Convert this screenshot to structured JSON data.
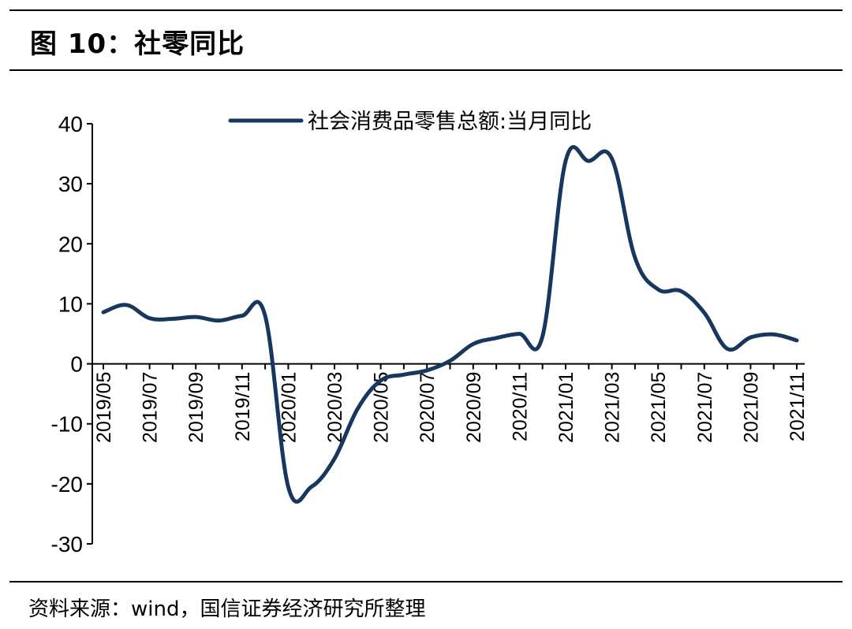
{
  "figure": {
    "title": "图 10：社零同比",
    "source": "资料来源：wind，国信证券经济研究所整理"
  },
  "chart_data": {
    "type": "line",
    "legend": "top-center",
    "grid": false,
    "ylim": [
      -30,
      40
    ],
    "yticks": [
      "40",
      "30",
      "20",
      "10",
      "0",
      "-10",
      "-20",
      "-30"
    ],
    "xticks": [
      "2019/05",
      "2019/07",
      "2019/09",
      "2019/11",
      "2020/01",
      "2020/03",
      "2020/05",
      "2020/07",
      "2020/09",
      "2020/11",
      "2021/01",
      "2021/03",
      "2021/05",
      "2021/07",
      "2021/09",
      "2021/11"
    ],
    "x": [
      "2019/05",
      "2019/06",
      "2019/07",
      "2019/08",
      "2019/09",
      "2019/10",
      "2019/11",
      "2019/12",
      "2020/01",
      "2020/02",
      "2020/03",
      "2020/04",
      "2020/05",
      "2020/06",
      "2020/07",
      "2020/08",
      "2020/09",
      "2020/10",
      "2020/11",
      "2020/12",
      "2021/01",
      "2021/02",
      "2021/03",
      "2021/04",
      "2021/05",
      "2021/06",
      "2021/07",
      "2021/08",
      "2021/09",
      "2021/10",
      "2021/11"
    ],
    "series": [
      {
        "name": "社会消费品零售总额:当月同比",
        "color": "#17375E",
        "values": [
          8.6,
          9.8,
          7.6,
          7.5,
          7.8,
          7.2,
          8.0,
          8.0,
          -20.5,
          -20.5,
          -15.8,
          -7.5,
          -2.8,
          -1.8,
          -1.1,
          0.5,
          3.3,
          4.3,
          5.0,
          4.6,
          33.8,
          33.8,
          34.2,
          17.7,
          12.4,
          12.1,
          8.5,
          2.5,
          4.4,
          4.9,
          3.9
        ]
      }
    ]
  }
}
